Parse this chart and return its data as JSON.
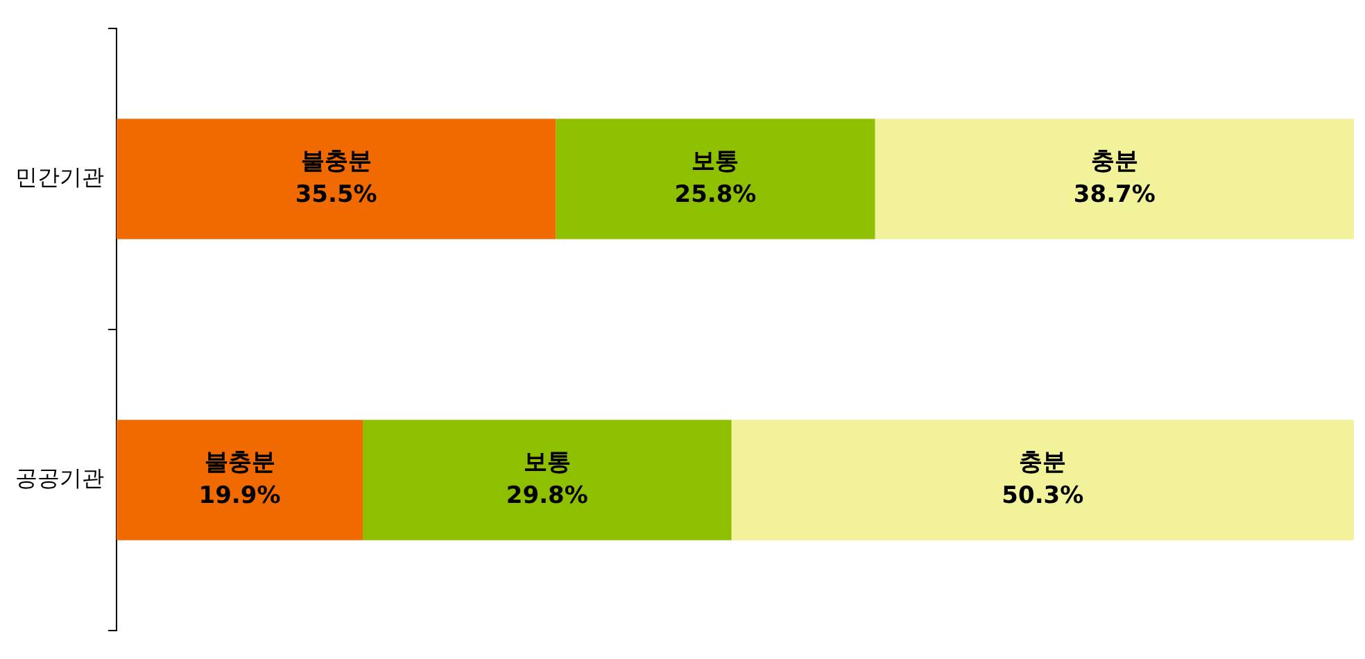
{
  "chart_data": {
    "type": "bar",
    "orientation": "horizontal",
    "stacked": true,
    "categories": [
      "민간기관",
      "공공기관"
    ],
    "series": [
      {
        "name": "불충분",
        "color": "#f06a00",
        "values": [
          35.5,
          19.9
        ],
        "value_labels": [
          "35.5%",
          "19.9%"
        ]
      },
      {
        "name": "보통",
        "color": "#8fc000",
        "values": [
          25.8,
          29.8
        ],
        "value_labels": [
          "25.8%",
          "29.8%"
        ]
      },
      {
        "name": "충분",
        "color": "#f2f29a",
        "values": [
          38.7,
          50.3
        ],
        "value_labels": [
          "38.7%",
          "50.3%"
        ]
      }
    ],
    "xlim": [
      0,
      100
    ],
    "tick_labels": "y",
    "grid": false,
    "legend": false
  }
}
